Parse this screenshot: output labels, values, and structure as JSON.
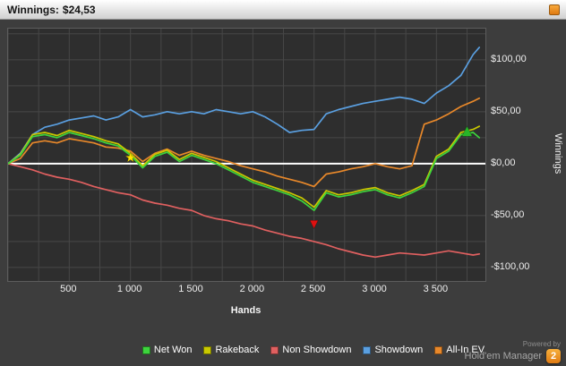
{
  "window": {
    "title_label": "Winnings:",
    "title_value": "$24,53"
  },
  "chart_data": {
    "type": "line",
    "xlabel": "Hands",
    "ylabel": "Winnings",
    "x_range": [
      0,
      3900
    ],
    "y_range": [
      -113,
      130
    ],
    "grid": {
      "x_step": 250,
      "y_step": 25,
      "color": "#474747"
    },
    "zero_line_color": "#ffffff",
    "x_ticks": [
      {
        "value": 500,
        "label": "500"
      },
      {
        "value": 1000,
        "label": "1 000"
      },
      {
        "value": 1500,
        "label": "1 500"
      },
      {
        "value": 2000,
        "label": "2 000"
      },
      {
        "value": 2500,
        "label": "2 500"
      },
      {
        "value": 3000,
        "label": "3 000"
      },
      {
        "value": 3500,
        "label": "3 500"
      }
    ],
    "y_ticks": [
      {
        "value": 100,
        "label": "$100,00"
      },
      {
        "value": 50,
        "label": "$50,00"
      },
      {
        "value": 0,
        "label": "$0,00"
      },
      {
        "value": -50,
        "label": "-$50,00"
      },
      {
        "value": -100,
        "label": "-$100,00"
      }
    ],
    "x": [
      0,
      100,
      200,
      300,
      400,
      500,
      600,
      700,
      800,
      900,
      1000,
      1100,
      1200,
      1300,
      1400,
      1500,
      1600,
      1700,
      1800,
      1900,
      2000,
      2100,
      2200,
      2300,
      2400,
      2500,
      2600,
      2700,
      2800,
      2900,
      3000,
      3100,
      3200,
      3300,
      3400,
      3500,
      3600,
      3700,
      3800,
      3850
    ],
    "series": [
      {
        "name": "Net Won",
        "color": "#3dd43d",
        "z": 5,
        "values": [
          0,
          8,
          26,
          28,
          25,
          30,
          27,
          24,
          20,
          17,
          8,
          -4,
          7,
          11,
          2,
          8,
          4,
          0,
          -6,
          -12,
          -18,
          -22,
          -26,
          -30,
          -36,
          -45,
          -28,
          -32,
          -30,
          -27,
          -25,
          -30,
          -33,
          -28,
          -22,
          5,
          12,
          28,
          30,
          25
        ]
      },
      {
        "name": "Rakeback",
        "color": "#c9c900",
        "z": 4,
        "values": [
          0,
          9,
          28,
          30,
          27,
          32,
          29,
          26,
          22,
          19,
          10,
          -2,
          9,
          13,
          4,
          10,
          6,
          2,
          -4,
          -10,
          -16,
          -20,
          -24,
          -28,
          -33,
          -42,
          -26,
          -30,
          -28,
          -25,
          -23,
          -28,
          -31,
          -26,
          -20,
          7,
          14,
          30,
          33,
          36
        ]
      },
      {
        "name": "Non Showdown",
        "color": "#e06060",
        "z": 1,
        "values": [
          0,
          -3,
          -6,
          -10,
          -13,
          -15,
          -18,
          -22,
          -25,
          -28,
          -30,
          -35,
          -38,
          -40,
          -43,
          -45,
          -50,
          -53,
          -55,
          -58,
          -60,
          -64,
          -67,
          -70,
          -72,
          -75,
          -78,
          -82,
          -85,
          -88,
          -90,
          -88,
          -86,
          -87,
          -88,
          -86,
          -84,
          -86,
          -88,
          -87
        ]
      },
      {
        "name": "Showdown",
        "color": "#5a9fe0",
        "z": 2,
        "values": [
          0,
          10,
          28,
          35,
          38,
          42,
          44,
          46,
          42,
          45,
          52,
          45,
          47,
          50,
          48,
          50,
          48,
          52,
          50,
          48,
          50,
          45,
          38,
          30,
          32,
          33,
          48,
          52,
          55,
          58,
          60,
          62,
          64,
          62,
          58,
          68,
          75,
          85,
          105,
          112
        ]
      },
      {
        "name": "All-In EV",
        "color": "#e8882a",
        "z": 3,
        "values": [
          0,
          5,
          20,
          22,
          20,
          24,
          22,
          20,
          16,
          15,
          12,
          2,
          10,
          14,
          8,
          12,
          8,
          5,
          2,
          -2,
          -5,
          -8,
          -12,
          -15,
          -18,
          -22,
          -10,
          -8,
          -5,
          -3,
          0,
          -3,
          -5,
          -2,
          38,
          42,
          48,
          55,
          60,
          63
        ]
      }
    ],
    "markers": [
      {
        "type": "star",
        "x": 1000,
        "y": 6,
        "color": "#ffe400",
        "size": 15
      },
      {
        "type": "arrow-down",
        "x": 2500,
        "y": -58,
        "color": "#e01010",
        "size": 12
      },
      {
        "type": "arrow-up",
        "x": 3750,
        "y": 32,
        "color": "#28b428",
        "size": 15
      }
    ]
  },
  "branding": {
    "powered_by": "Powered by",
    "app_name": "Hold'em Manager",
    "logo_text": "2"
  }
}
